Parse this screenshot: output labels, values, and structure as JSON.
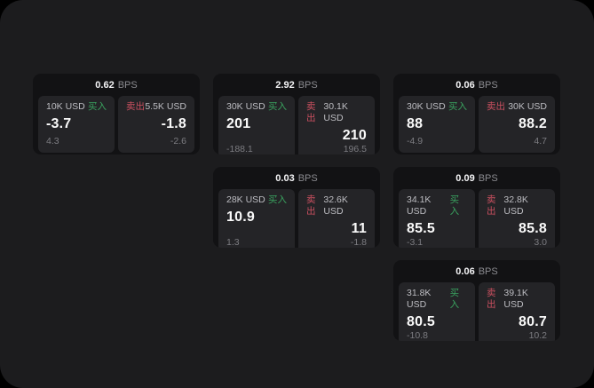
{
  "labels": {
    "bps_unit": "BPS",
    "buy": "买入",
    "sell": "卖出"
  },
  "colors": {
    "buy-color": "#3aa35f",
    "sell-color": "#cb5060",
    "page-bg": "#1c1c1e",
    "card-bg": "#121214",
    "panel-bg": "#242427"
  },
  "cards": [
    {
      "bps": "0.62",
      "buy": {
        "amount": "10K USD",
        "price": "-3.7",
        "change": "4.3"
      },
      "sell": {
        "amount": "5.5K USD",
        "price": "-1.8",
        "change": "-2.6"
      }
    },
    {
      "bps": "2.92",
      "buy": {
        "amount": "30K USD",
        "price": "201",
        "change": "-188.1"
      },
      "sell": {
        "amount": "30.1K USD",
        "price": "210",
        "change": "196.5"
      }
    },
    {
      "bps": "0.06",
      "buy": {
        "amount": "30K USD",
        "price": "88",
        "change": "-4.9"
      },
      "sell": {
        "amount": "30K USD",
        "price": "88.2",
        "change": "4.7"
      }
    },
    {
      "bps": "0.03",
      "buy": {
        "amount": "28K USD",
        "price": "10.9",
        "change": "1.3"
      },
      "sell": {
        "amount": "32.6K USD",
        "price": "11",
        "change": "-1.8"
      }
    },
    {
      "bps": "0.09",
      "buy": {
        "amount": "34.1K USD",
        "price": "85.5",
        "change": "-3.1"
      },
      "sell": {
        "amount": "32.8K USD",
        "price": "85.8",
        "change": "3.0"
      }
    },
    {
      "bps": "0.06",
      "buy": {
        "amount": "31.8K USD",
        "price": "80.5",
        "change": "-10.8"
      },
      "sell": {
        "amount": "39.1K USD",
        "price": "80.7",
        "change": "10.2"
      }
    }
  ]
}
